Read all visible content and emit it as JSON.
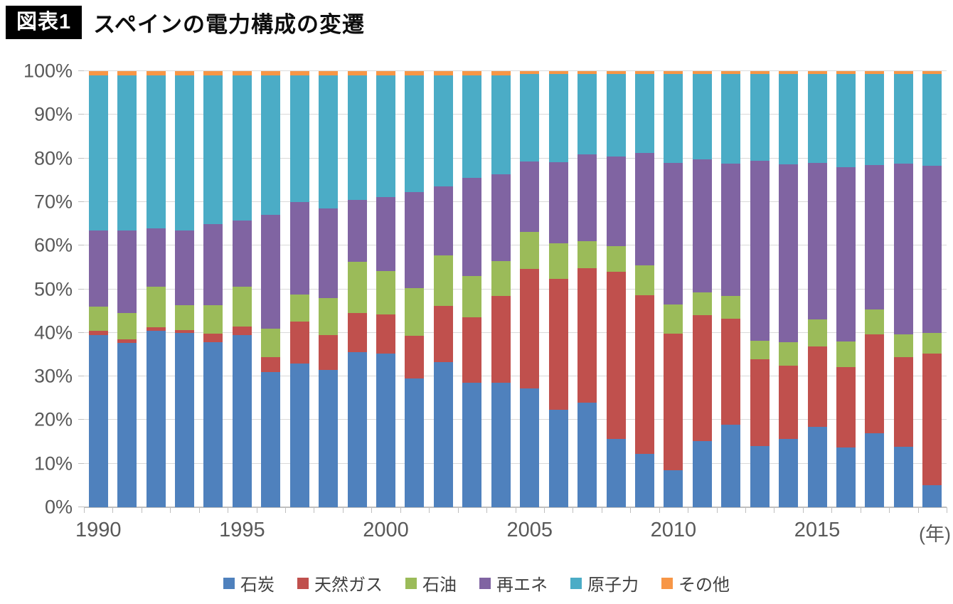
{
  "header": {
    "badge": "図表1",
    "title": "スペインの電力構成の変遷"
  },
  "axes": {
    "y_tick_labels": [
      "0%",
      "10%",
      "20%",
      "30%",
      "40%",
      "50%",
      "60%",
      "70%",
      "80%",
      "90%",
      "100%"
    ],
    "x_tick_labels": [
      "1990",
      "1995",
      "2000",
      "2005",
      "2010",
      "2015"
    ],
    "x_unit_label": "(年)"
  },
  "style_colors": {
    "gridline": "#d9d9d9",
    "axis": "#bfbfbf",
    "axis_text": "#595959",
    "legend_text": "#404040",
    "badge_bg": "#000000",
    "badge_text": "#ffffff"
  },
  "chart_data": {
    "type": "bar",
    "stacked": true,
    "unit": "%",
    "title": "スペインの電力構成の変遷",
    "xlabel": "年",
    "ylabel": "",
    "ylim": [
      0,
      100
    ],
    "ytick_step": 10,
    "grid": true,
    "legend_position": "bottom",
    "categories": [
      1990,
      1991,
      1992,
      1993,
      1994,
      1995,
      1996,
      1997,
      1998,
      1999,
      2000,
      2001,
      2002,
      2003,
      2004,
      2005,
      2006,
      2007,
      2008,
      2009,
      2010,
      2011,
      2012,
      2013,
      2014,
      2015,
      2016,
      2017,
      2018,
      2019
    ],
    "series": [
      {
        "key": "coal",
        "name": "石炭",
        "color": "#4F81BD",
        "values": [
          39.5,
          37.7,
          40.5,
          40.0,
          37.8,
          39.5,
          31.0,
          33.0,
          31.5,
          35.5,
          35.3,
          29.5,
          33.2,
          28.5,
          28.5,
          27.3,
          22.4,
          24.0,
          15.6,
          12.2,
          8.5,
          15.2,
          19.0,
          14.0,
          15.6,
          18.5,
          13.7,
          17.0,
          13.8,
          5.0
        ]
      },
      {
        "key": "natural-gas",
        "name": "天然ガス",
        "color": "#C0504D",
        "values": [
          1.0,
          0.8,
          0.8,
          0.7,
          2.0,
          2.0,
          3.5,
          9.5,
          8.0,
          9.0,
          8.9,
          9.8,
          13.0,
          15.0,
          20.0,
          27.3,
          29.9,
          30.8,
          38.4,
          36.4,
          31.3,
          28.8,
          24.2,
          19.9,
          16.8,
          18.3,
          18.5,
          22.6,
          20.7,
          30.2
        ]
      },
      {
        "key": "oil",
        "name": "石油",
        "color": "#9BBB59",
        "values": [
          5.5,
          6.0,
          9.2,
          5.6,
          6.5,
          9.0,
          6.5,
          6.2,
          8.5,
          11.8,
          10.0,
          10.9,
          11.6,
          9.5,
          8.0,
          8.6,
          8.2,
          6.2,
          5.9,
          6.9,
          6.7,
          5.2,
          5.3,
          4.3,
          5.4,
          6.2,
          5.8,
          5.7,
          5.2,
          4.8
        ]
      },
      {
        "key": "renewables",
        "name": "再エネ",
        "color": "#8064A2",
        "values": [
          17.5,
          19.0,
          13.5,
          17.2,
          18.7,
          15.3,
          26.0,
          21.3,
          20.5,
          14.2,
          17.0,
          22.0,
          15.7,
          22.5,
          19.8,
          16.1,
          18.7,
          20.0,
          20.6,
          25.8,
          32.5,
          30.5,
          30.3,
          41.3,
          40.9,
          36.0,
          40.0,
          33.1,
          39.1,
          38.3
        ]
      },
      {
        "key": "nuclear",
        "name": "原子力",
        "color": "#4BACC6",
        "values": [
          35.5,
          35.5,
          35.0,
          35.5,
          34.0,
          33.2,
          32.0,
          29.0,
          30.5,
          28.5,
          27.8,
          26.8,
          25.5,
          23.5,
          22.7,
          20.0,
          20.1,
          18.3,
          18.9,
          18.1,
          20.3,
          19.6,
          20.5,
          19.8,
          20.6,
          20.3,
          21.3,
          20.9,
          20.5,
          21.0
        ]
      },
      {
        "key": "other",
        "name": "その他",
        "color": "#F79646",
        "values": [
          1.0,
          1.0,
          1.0,
          1.0,
          1.0,
          1.0,
          1.0,
          1.0,
          1.0,
          1.0,
          1.0,
          1.0,
          1.0,
          1.0,
          1.0,
          0.7,
          0.7,
          0.7,
          0.6,
          0.6,
          0.7,
          0.7,
          0.7,
          0.7,
          0.7,
          0.7,
          0.7,
          0.7,
          0.7,
          0.7
        ]
      }
    ]
  }
}
